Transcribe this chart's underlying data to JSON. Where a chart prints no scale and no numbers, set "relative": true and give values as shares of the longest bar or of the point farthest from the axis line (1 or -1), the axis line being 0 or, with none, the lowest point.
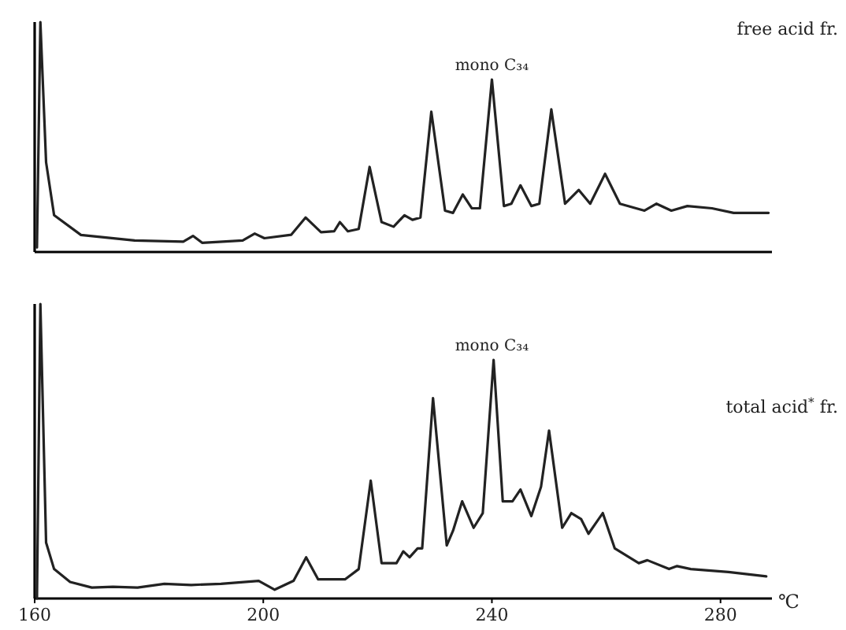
{
  "chart_data": [
    {
      "type": "line",
      "title": "free acid fr.",
      "relative": true,
      "xlim": [
        160,
        289
      ],
      "xticks": [
        160,
        200,
        240,
        280
      ],
      "tick_labels": false,
      "color": "#222222",
      "annotations": [
        {
          "text": "mono C₃₄",
          "x": 240,
          "y": 0.75
        }
      ],
      "x": [
        160.4,
        161,
        162,
        163.4,
        168.1,
        177.5,
        186,
        187.7,
        189.3,
        196.4,
        198.5,
        200.2,
        204.9,
        207.4,
        210.1,
        212.4,
        213.4,
        214.8,
        216.7,
        218.6,
        220.7,
        222.8,
        224.7,
        226.1,
        227.5,
        229.4,
        231.8,
        233.2,
        234.9,
        236.5,
        237.9,
        240,
        242.1,
        243.4,
        245,
        246.9,
        248.3,
        250.4,
        252.8,
        255.2,
        257.2,
        259.8,
        262.4,
        266.7,
        268.8,
        271.4,
        274.2,
        278.5,
        282.3,
        288.4
      ],
      "values": [
        0.02,
        1,
        0.39,
        0.16,
        0.074,
        0.05,
        0.045,
        0.07,
        0.04,
        0.05,
        0.08,
        0.06,
        0.075,
        0.15,
        0.086,
        0.09,
        0.13,
        0.09,
        0.1,
        0.37,
        0.13,
        0.11,
        0.16,
        0.14,
        0.15,
        0.61,
        0.18,
        0.17,
        0.25,
        0.19,
        0.19,
        0.75,
        0.2,
        0.21,
        0.29,
        0.2,
        0.21,
        0.62,
        0.21,
        0.27,
        0.21,
        0.34,
        0.21,
        0.18,
        0.21,
        0.18,
        0.2,
        0.19,
        0.17,
        0.17
      ]
    },
    {
      "type": "line",
      "title": "total acid$^{*}$ fr.",
      "xlabel": "℃",
      "relative": true,
      "xlim": [
        160,
        289
      ],
      "xticks": [
        160,
        200,
        240,
        280
      ],
      "tick_labels": "x",
      "color": "#222222",
      "annotations": [
        {
          "text": "mono C₃₄",
          "x": 240,
          "y": 0.81
        }
      ],
      "x": [
        160.4,
        161,
        162,
        163.4,
        166.2,
        170,
        173.7,
        178,
        182.7,
        187.4,
        192.6,
        199.2,
        202,
        205.3,
        207.5,
        209.6,
        214.3,
        216.7,
        218.8,
        220.7,
        223.3,
        224.5,
        225.6,
        227,
        227.8,
        229.7,
        232.1,
        233.2,
        234.8,
        236.8,
        238.4,
        240.3,
        241.9,
        243.6,
        245,
        246.9,
        248.6,
        250,
        252.3,
        253.9,
        255.6,
        256.9,
        259.4,
        261.5,
        265.7,
        267.2,
        271,
        272.4,
        274.8,
        281.4,
        288
      ],
      "values": [
        0,
        1,
        0.19,
        0.1,
        0.056,
        0.037,
        0.04,
        0.037,
        0.05,
        0.046,
        0.05,
        0.06,
        0.03,
        0.06,
        0.14,
        0.065,
        0.065,
        0.1,
        0.4,
        0.12,
        0.12,
        0.16,
        0.14,
        0.17,
        0.17,
        0.68,
        0.18,
        0.23,
        0.33,
        0.24,
        0.29,
        0.81,
        0.33,
        0.33,
        0.37,
        0.28,
        0.38,
        0.57,
        0.24,
        0.29,
        0.27,
        0.22,
        0.29,
        0.17,
        0.12,
        0.13,
        0.1,
        0.11,
        0.1,
        0.09,
        0.075
      ]
    }
  ]
}
